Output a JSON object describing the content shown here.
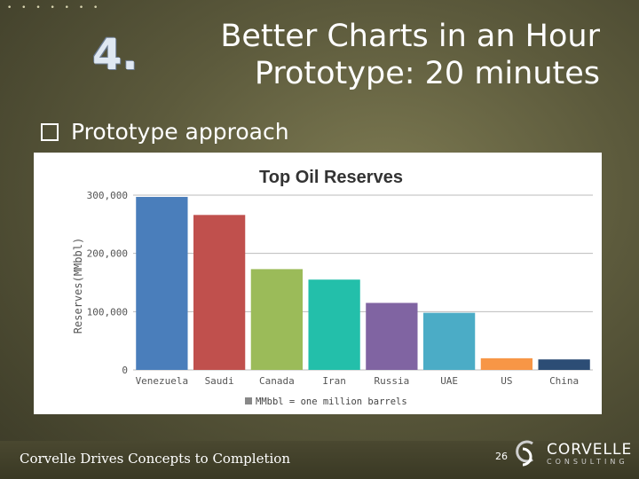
{
  "slide": {
    "dots": "• • • • • • •",
    "number": "4.",
    "title_line1": "Better Charts in an Hour",
    "title_line2": "Prototype: 20 minutes",
    "bullet": "Prototype approach",
    "footer": "Corvelle Drives Concepts to Completion",
    "page": "26",
    "logo_name": "CORVELLE",
    "logo_sub": "CONSULTING"
  },
  "chart_data": {
    "type": "bar",
    "title": "Top Oil Reserves",
    "ylabel": "Reserves(MMbbl)",
    "xlabel": "",
    "categories": [
      "Venezuela",
      "Saudi",
      "Canada",
      "Iran",
      "Russia",
      "UAE",
      "US",
      "China"
    ],
    "values": [
      297000,
      266000,
      173000,
      155000,
      115000,
      98000,
      20000,
      18000
    ],
    "colors": [
      "#4a7ebb",
      "#c0504d",
      "#9bbb59",
      "#23bfaa",
      "#8064a2",
      "#4bacc6",
      "#f79646",
      "#2c4d75"
    ],
    "ylim": [
      0,
      300000
    ],
    "yticks": [
      0,
      100000,
      200000,
      300000
    ],
    "ytick_labels": [
      "0",
      "100,000",
      "200,000",
      "300,000"
    ],
    "legend": "MMbbl = one million barrels",
    "legend_color": "#888888",
    "grid": true
  }
}
